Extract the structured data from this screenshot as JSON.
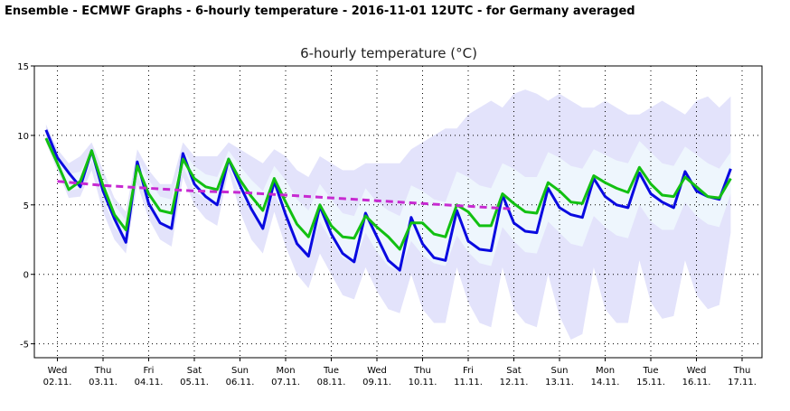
{
  "header": {
    "title": "Ensemble - ECMWF Graphs - 6-hourly temperature - 2016-11-01 12UTC - for Germany averaged"
  },
  "colors": {
    "outer_band": "#e3e3fb",
    "inner_band": "#eef6fd",
    "control": "#0a0ae0",
    "ensemble_mean": "#12c012",
    "climate": "#c72ad1",
    "ens_median_light": "#aaaaee"
  },
  "chart_data": {
    "type": "line",
    "title": "6-hourly temperature (°C)",
    "ylim": [
      -6,
      15
    ],
    "yticks": [
      15,
      10,
      5,
      0,
      -5
    ],
    "xtick_days": [
      "Wed",
      "Thu",
      "Fri",
      "Sat",
      "Sun",
      "Mon",
      "Tue",
      "Wed",
      "Thu",
      "Fri",
      "Sat",
      "Sun",
      "Mon",
      "Tue",
      "Wed",
      "Thu"
    ],
    "xtick_dates": [
      "02.11.",
      "03.11.",
      "04.11.",
      "05.11.",
      "06.11.",
      "07.11.",
      "08.11.",
      "09.11.",
      "10.11.",
      "11.11.",
      "12.11.",
      "13.11.",
      "14.11.",
      "15.11.",
      "16.11.",
      "17.11."
    ],
    "x_start": "2016-11-01 18UTC",
    "x_step_hours": 6,
    "grid": true,
    "series": [
      {
        "role": "control",
        "values": [
          10.4,
          8.4,
          7.3,
          6.3,
          8.9,
          6.0,
          4.0,
          2.3,
          8.1,
          5.1,
          3.7,
          3.3,
          8.7,
          6.5,
          5.6,
          5.0,
          8.3,
          6.4,
          4.7,
          3.3,
          6.7,
          4.3,
          2.2,
          1.3,
          4.9,
          2.9,
          1.5,
          0.9,
          4.4,
          2.7,
          1.0,
          0.3,
          4.1,
          2.2,
          1.2,
          1.0,
          4.6,
          2.4,
          1.8,
          1.7,
          5.7,
          3.7,
          3.1,
          3.0,
          6.2,
          4.8,
          4.3,
          4.1,
          6.9,
          5.6,
          5.0,
          4.8,
          7.3,
          5.8,
          5.2,
          4.8,
          7.4,
          6.0,
          5.6,
          5.4,
          7.6
        ]
      },
      {
        "role": "ensemble_mean",
        "values": [
          9.8,
          8.0,
          6.1,
          6.7,
          8.9,
          6.4,
          4.3,
          3.2,
          7.8,
          5.8,
          4.6,
          4.4,
          8.3,
          6.9,
          6.3,
          6.1,
          8.3,
          6.8,
          5.6,
          4.6,
          6.9,
          5.2,
          3.6,
          2.7,
          5.0,
          3.5,
          2.7,
          2.6,
          4.2,
          3.4,
          2.7,
          1.8,
          3.7,
          3.7,
          2.9,
          2.7,
          5.0,
          4.5,
          3.5,
          3.5,
          5.8,
          5.1,
          4.5,
          4.4,
          6.6,
          6.0,
          5.2,
          5.1,
          7.1,
          6.6,
          6.2,
          5.9,
          7.7,
          6.5,
          5.7,
          5.6,
          7.0,
          6.3,
          5.6,
          5.5,
          6.9
        ]
      },
      {
        "role": "climate",
        "values": [
          6.7,
          6.4,
          6.2,
          6.0,
          5.9,
          5.7,
          5.5,
          5.3,
          5.1,
          4.9,
          4.7
        ]
      }
    ],
    "bands": [
      {
        "role": "outer",
        "lower": [
          9.5,
          7.5,
          5.5,
          5.6,
          7.5,
          4.5,
          2.5,
          1.5,
          6.5,
          4.0,
          2.5,
          2.0,
          7.0,
          5.0,
          4.0,
          3.5,
          7.5,
          4.5,
          2.5,
          1.5,
          4.5,
          2.0,
          0.0,
          -1.0,
          1.5,
          0.0,
          -1.5,
          -1.8,
          0.5,
          -1.2,
          -2.5,
          -2.8,
          0.0,
          -2.5,
          -3.5,
          -3.5,
          0.5,
          -2.0,
          -3.5,
          -3.8,
          0.5,
          -2.5,
          -3.5,
          -3.8,
          0.0,
          -3.0,
          -4.7,
          -4.3,
          0.5,
          -2.5,
          -3.5,
          -3.5,
          1.0,
          -2.0,
          -3.2,
          -3.0,
          1.0,
          -1.5,
          -2.5,
          -2.2,
          3.0
        ],
        "upper": [
          10.8,
          9.0,
          8.0,
          8.5,
          9.5,
          7.5,
          5.5,
          4.5,
          9.0,
          7.5,
          6.5,
          6.5,
          9.5,
          8.5,
          8.5,
          8.5,
          9.5,
          9.0,
          8.5,
          8.0,
          9.0,
          8.5,
          7.5,
          7.0,
          8.5,
          8.0,
          7.5,
          7.5,
          8.0,
          8.0,
          8.0,
          8.0,
          9.0,
          9.5,
          10.0,
          10.5,
          10.5,
          11.5,
          12.0,
          12.5,
          12.0,
          13.0,
          13.3,
          13.0,
          12.5,
          13.0,
          12.5,
          12.0,
          12.0,
          12.5,
          12.0,
          11.5,
          11.5,
          12.0,
          12.5,
          12.0,
          11.5,
          12.5,
          12.8,
          12.0,
          12.8
        ]
      },
      {
        "role": "inner",
        "lower": [
          10.0,
          7.8,
          6.0,
          6.2,
          8.2,
          5.5,
          3.4,
          2.5,
          7.2,
          5.0,
          3.6,
          3.2,
          7.8,
          6.0,
          5.4,
          5.0,
          7.8,
          5.8,
          4.6,
          3.5,
          5.8,
          4.0,
          2.4,
          1.5,
          3.8,
          2.4,
          1.2,
          0.8,
          3.0,
          1.6,
          0.6,
          0.2,
          2.4,
          1.4,
          0.8,
          0.6,
          2.8,
          1.6,
          0.8,
          0.6,
          3.4,
          2.4,
          1.6,
          1.5,
          3.8,
          3.0,
          2.2,
          2.0,
          4.2,
          3.4,
          2.8,
          2.6,
          5.0,
          3.8,
          3.2,
          3.2,
          5.2,
          4.2,
          3.6,
          3.4,
          5.8
        ],
        "upper": [
          10.4,
          8.6,
          7.2,
          7.4,
          9.0,
          7.0,
          5.0,
          3.9,
          8.4,
          6.8,
          5.6,
          5.4,
          8.9,
          7.8,
          7.2,
          7.0,
          8.9,
          7.8,
          6.8,
          6.0,
          7.8,
          6.8,
          5.4,
          4.6,
          6.5,
          5.4,
          4.4,
          4.2,
          6.2,
          5.2,
          4.6,
          4.2,
          6.4,
          6.0,
          5.4,
          5.2,
          7.4,
          7.0,
          6.4,
          6.2,
          8.0,
          7.6,
          7.0,
          7.0,
          8.8,
          8.4,
          7.8,
          7.6,
          9.0,
          8.6,
          8.2,
          8.0,
          9.6,
          8.8,
          8.0,
          7.8,
          9.2,
          8.6,
          8.0,
          7.6,
          8.8
        ]
      }
    ]
  }
}
